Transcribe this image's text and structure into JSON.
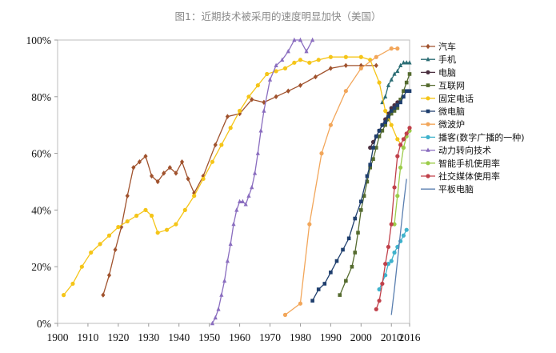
{
  "page": {
    "title": "图1：近期技术被采用的速度明显加快（美国）"
  },
  "chart_data": {
    "type": "line",
    "title": "图1：近期技术被采用的速度明显加快（美国）",
    "xlabel": "",
    "ylabel": "",
    "xlim": [
      1900,
      2016
    ],
    "ylim": [
      0,
      100
    ],
    "x_ticks": [
      1900,
      1910,
      1920,
      1930,
      1940,
      1950,
      1960,
      1970,
      1980,
      1990,
      2000,
      2010,
      2016
    ],
    "y_ticks": [
      0,
      20,
      40,
      60,
      80,
      100
    ],
    "y_tick_labels": [
      "0%",
      "20%",
      "40%",
      "60%",
      "80%",
      "100%"
    ],
    "legend_position": "right",
    "series": [
      {
        "name": "汽车",
        "color": "#a0522d",
        "marker": "diamond",
        "x": [
          1915,
          1917,
          1919,
          1921,
          1923,
          1925,
          1927,
          1929,
          1931,
          1933,
          1935,
          1937,
          1939,
          1941,
          1943,
          1945,
          1948,
          1952,
          1956,
          1960,
          1964,
          1968,
          1972,
          1976,
          1980,
          1985,
          1990,
          1995,
          2000,
          2005
        ],
        "y": [
          10,
          17,
          26,
          34,
          45,
          55,
          57,
          59,
          52,
          50,
          53,
          55,
          53,
          57,
          51,
          46,
          52,
          63,
          73,
          74,
          79,
          78,
          80,
          82,
          84,
          87,
          90,
          91,
          91,
          91
        ]
      },
      {
        "name": "手机",
        "color": "#2b6d74",
        "marker": "triangle",
        "x": [
          2007,
          2008,
          2009,
          2010,
          2011,
          2012,
          2013,
          2014,
          2015,
          2016
        ],
        "y": [
          78,
          80,
          84,
          86,
          88,
          89,
          91,
          92,
          92,
          92
        ]
      },
      {
        "name": "电脑",
        "color": "#4b3040",
        "marker": "circle",
        "x": [
          2003,
          2004,
          2005,
          2006,
          2007,
          2008,
          2009,
          2010,
          2011,
          2012
        ],
        "y": [
          62,
          64,
          66,
          68,
          70,
          72,
          74,
          76,
          77,
          78
        ]
      },
      {
        "name": "互联网",
        "color": "#556b2f",
        "marker": "square",
        "x": [
          1993,
          1995,
          1997,
          1998,
          1999,
          2000,
          2001,
          2002,
          2003,
          2004,
          2005,
          2006,
          2007,
          2008,
          2009,
          2010,
          2011,
          2012,
          2013,
          2014,
          2015,
          2016
        ],
        "y": [
          10,
          15,
          20,
          25,
          32,
          40,
          45,
          50,
          55,
          58,
          62,
          66,
          68,
          70,
          72,
          74,
          75,
          76,
          79,
          82,
          85,
          88
        ]
      },
      {
        "name": "固定电话",
        "color": "#f5c518",
        "marker": "circle",
        "x": [
          1902,
          1905,
          1908,
          1911,
          1914,
          1917,
          1920,
          1923,
          1926,
          1929,
          1931,
          1933,
          1936,
          1939,
          1942,
          1945,
          1948,
          1951,
          1954,
          1957,
          1960,
          1963,
          1966,
          1969,
          1972,
          1975,
          1978,
          1980,
          1983,
          1986,
          1990,
          1995,
          2000,
          2003,
          2006,
          2008,
          2010,
          2012,
          2014
        ],
        "y": [
          10,
          14,
          20,
          25,
          28,
          31,
          34,
          36,
          38,
          40,
          38,
          32,
          33,
          35,
          40,
          45,
          51,
          57,
          63,
          69,
          75,
          80,
          84,
          88,
          89,
          90,
          92,
          93,
          92,
          93,
          94,
          94,
          94,
          93,
          85,
          75,
          70,
          65,
          62
        ]
      },
      {
        "name": "微电脑",
        "color": "#1f3f6e",
        "marker": "square",
        "x": [
          1984,
          1986,
          1988,
          1990,
          1992,
          1994,
          1996,
          1998,
          2000,
          2002,
          2003,
          2004,
          2005,
          2006,
          2007,
          2008,
          2009,
          2010,
          2011,
          2012,
          2013,
          2014,
          2015,
          2016
        ],
        "y": [
          8,
          12,
          14,
          18,
          22,
          26,
          30,
          37,
          43,
          52,
          56,
          62,
          66,
          68,
          70,
          71,
          73,
          75,
          76,
          77,
          78,
          80,
          82,
          82
        ]
      },
      {
        "name": "微波炉",
        "color": "#f2a65a",
        "marker": "circle",
        "x": [
          1975,
          1980,
          1983,
          1987,
          1990,
          1995,
          2000,
          2005,
          2010,
          2012
        ],
        "y": [
          3,
          7,
          35,
          60,
          70,
          82,
          90,
          94,
          97,
          97
        ]
      },
      {
        "name": "播客(数字广播的一种)",
        "color": "#3fb2cc",
        "marker": "circle",
        "x": [
          2006,
          2008,
          2009,
          2010,
          2011,
          2012,
          2013,
          2014,
          2015
        ],
        "y": [
          12,
          17,
          21,
          22,
          25,
          27,
          29,
          31,
          33
        ]
      },
      {
        "name": "动力转向技术",
        "color": "#8a6dbf",
        "marker": "triangle",
        "x": [
          1951,
          1952,
          1953,
          1954,
          1955,
          1956,
          1957,
          1958,
          1959,
          1960,
          1961,
          1962,
          1963,
          1964,
          1965,
          1966,
          1967,
          1968,
          1970,
          1972,
          1974,
          1976,
          1978,
          1980,
          1982,
          1984
        ],
        "y": [
          0,
          2,
          5,
          10,
          15,
          22,
          28,
          35,
          40,
          43,
          43,
          42,
          45,
          48,
          53,
          60,
          68,
          75,
          86,
          91,
          93,
          96,
          100,
          100,
          96,
          100
        ]
      },
      {
        "name": "智能手机使用率",
        "color": "#9ccc4a",
        "marker": "circle",
        "x": [
          2011,
          2012,
          2013,
          2014,
          2015,
          2016
        ],
        "y": [
          35,
          45,
          55,
          62,
          66,
          68
        ]
      },
      {
        "name": "社交媒体使用率",
        "color": "#c0404a",
        "marker": "circle",
        "x": [
          2005,
          2006,
          2007,
          2008,
          2009,
          2010,
          2011,
          2012,
          2013,
          2014,
          2015,
          2016
        ],
        "y": [
          5,
          8,
          14,
          21,
          27,
          35,
          48,
          59,
          63,
          65,
          67,
          69
        ]
      },
      {
        "name": "平板电脑",
        "color": "#5a7fb0",
        "marker": "none",
        "x": [
          2010,
          2011,
          2012,
          2013,
          2014,
          2015
        ],
        "y": [
          3,
          12,
          22,
          32,
          42,
          51
        ]
      }
    ]
  }
}
